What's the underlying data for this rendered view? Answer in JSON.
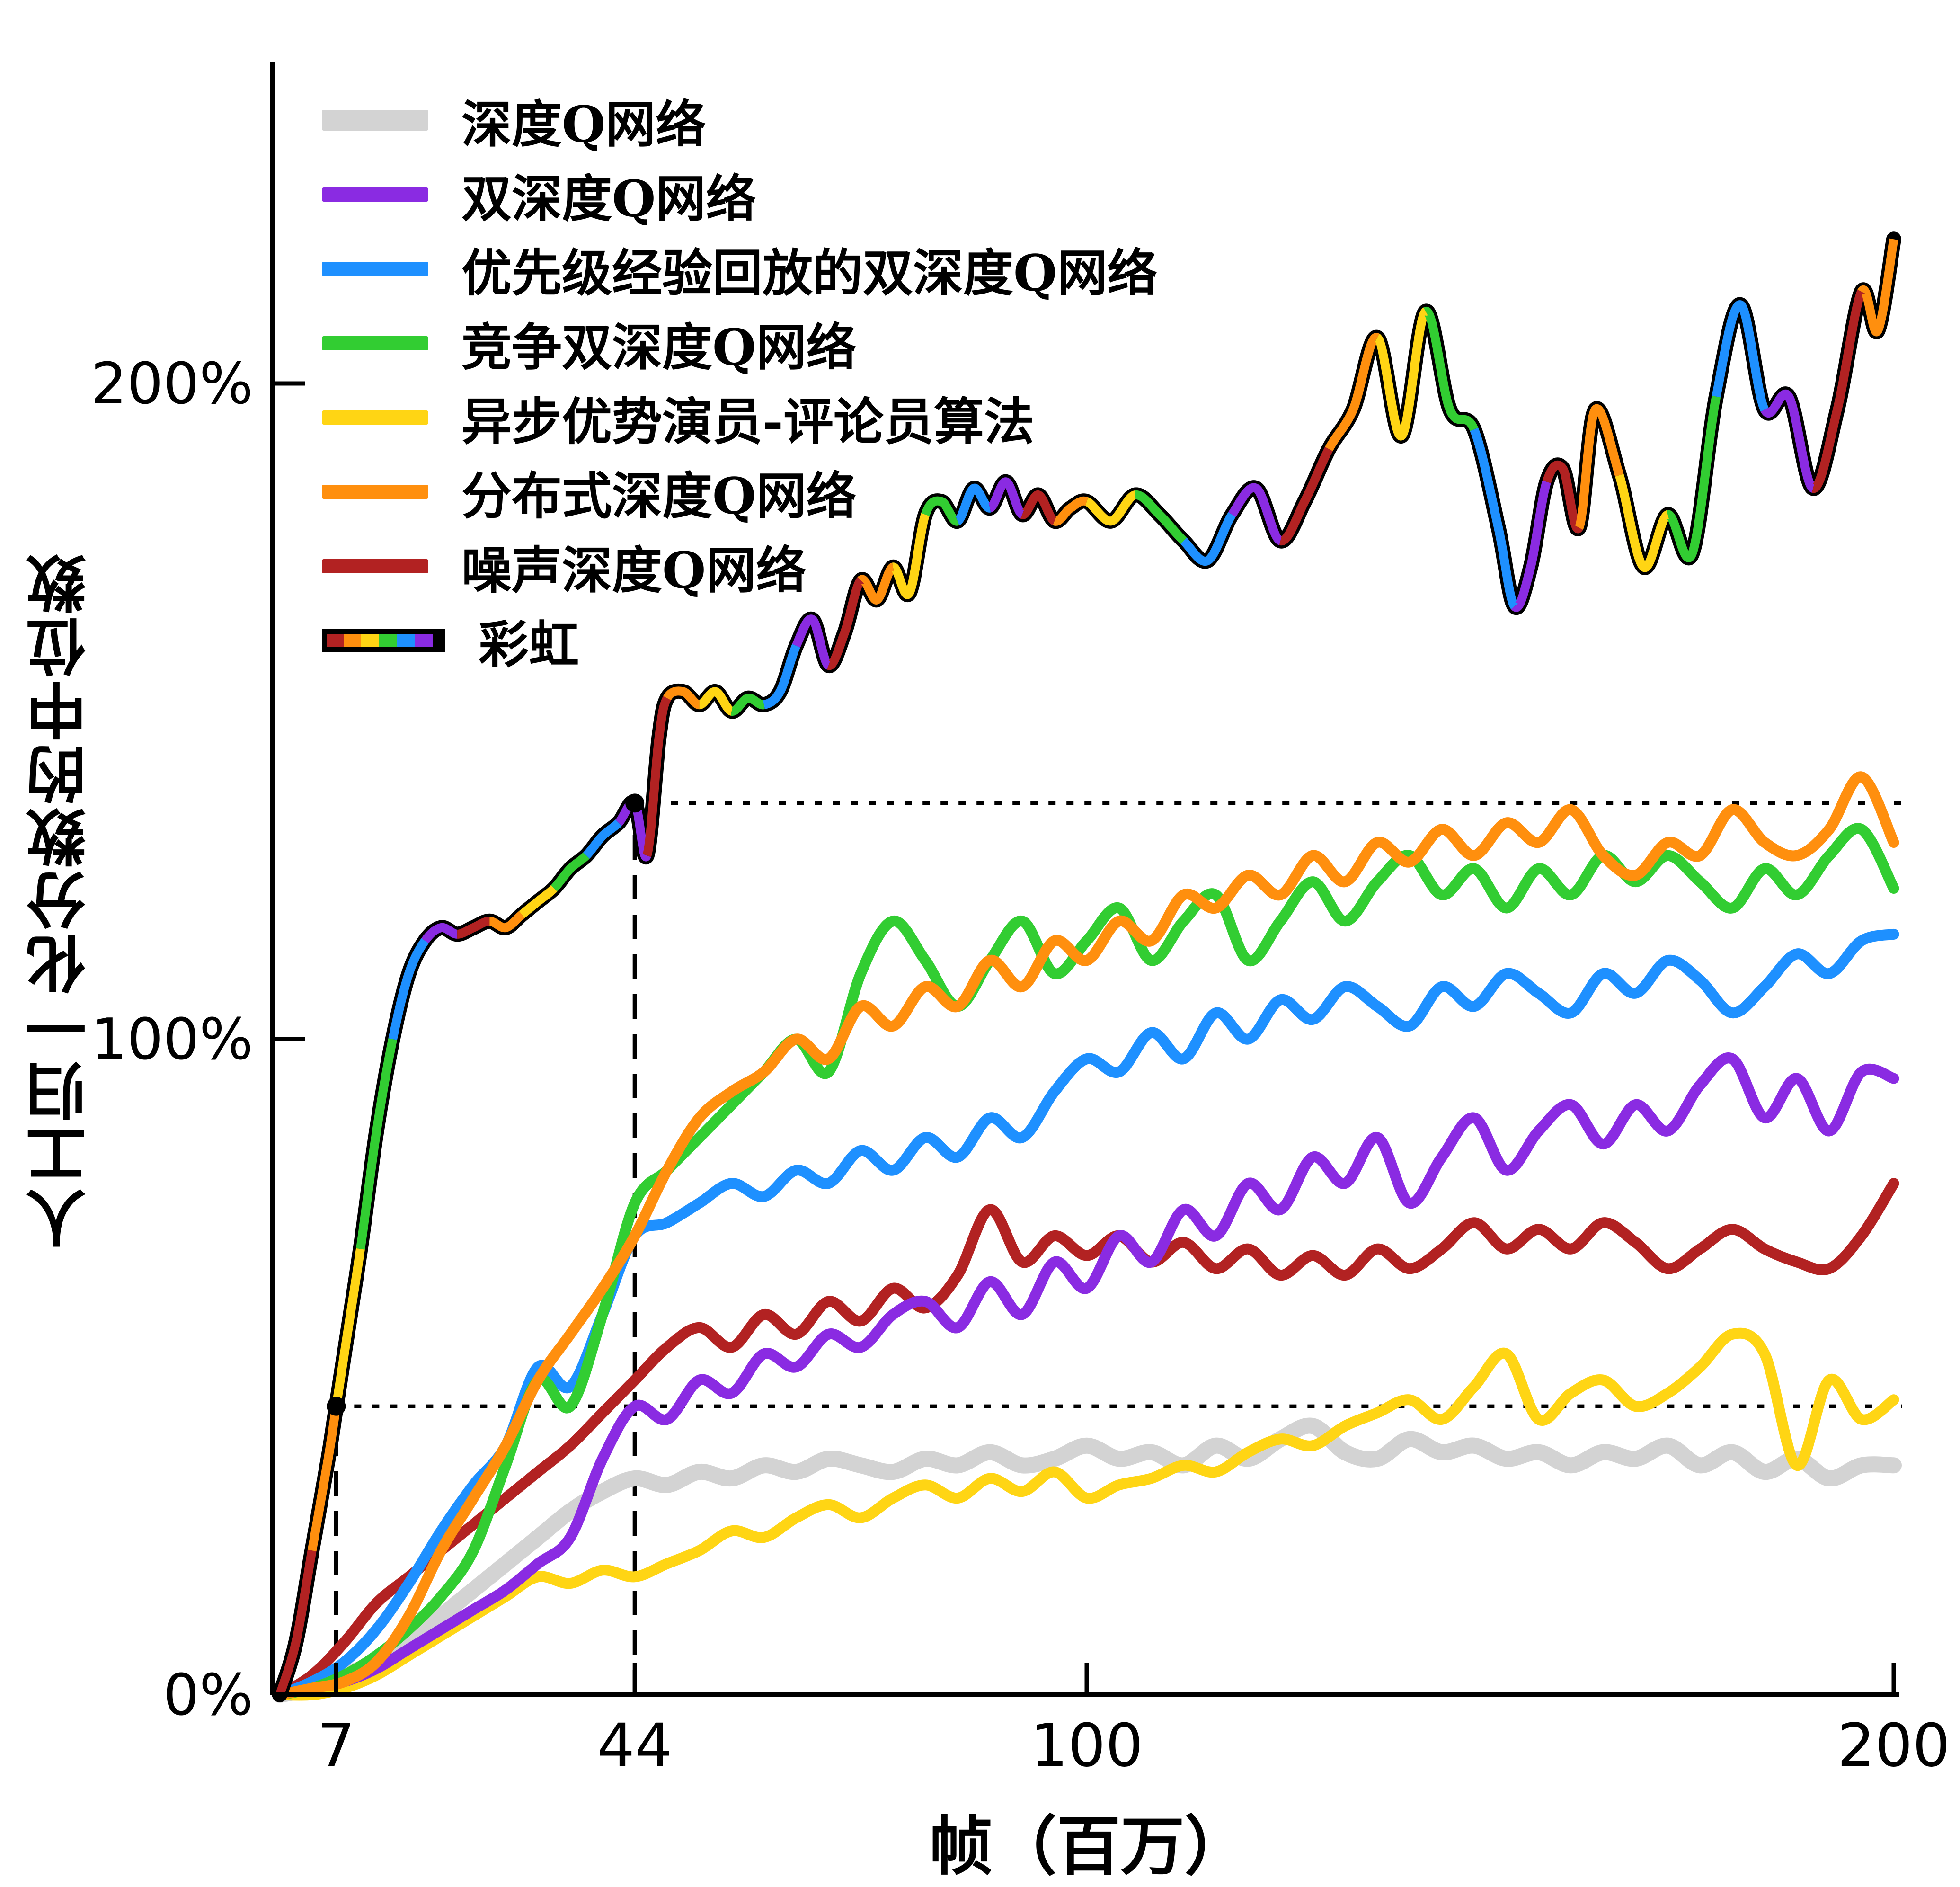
{
  "chart_data": {
    "type": "line",
    "title": "",
    "xlabel": "帧（百万）",
    "ylabel": "人工归一化分数的中位数",
    "xlim": [
      0,
      200
    ],
    "ylim": [
      0,
      250
    ],
    "grid": false,
    "legend_position": "top-left",
    "xticks": [
      {
        "value": 7,
        "label": "7"
      },
      {
        "value": 44,
        "label": "44"
      },
      {
        "value": 100,
        "label": "100"
      },
      {
        "value": 200,
        "label": "200"
      }
    ],
    "yticks": [
      {
        "value": 0,
        "label": "0%"
      },
      {
        "value": 100,
        "label": "100%"
      },
      {
        "value": 200,
        "label": "200%"
      }
    ],
    "x_grid": [
      0,
      4,
      8,
      12,
      16,
      20,
      24,
      28,
      32,
      36,
      40,
      44,
      48,
      52,
      56,
      60,
      64,
      68,
      72,
      76,
      80,
      84,
      88,
      92,
      96,
      100,
      104,
      108,
      112,
      116,
      120,
      124,
      128,
      132,
      136,
      140,
      144,
      148,
      152,
      156,
      160,
      164,
      168,
      172,
      176,
      180,
      184,
      188,
      192,
      196,
      200
    ],
    "series": [
      {
        "id": "dqn",
        "label": "深度Q网络",
        "color": "#d3d3d3",
        "width": 34,
        "y": [
          0,
          1,
          3,
          5,
          8,
          12,
          16,
          20,
          24,
          28,
          31,
          33,
          32,
          34,
          33,
          35,
          34,
          36,
          35,
          34,
          36,
          35,
          37,
          35,
          36,
          38,
          36,
          37,
          35,
          38,
          36,
          39,
          41,
          37,
          36,
          39,
          37,
          38,
          36,
          37,
          35,
          37,
          36,
          38,
          35,
          37,
          34,
          36,
          33,
          35,
          35
        ]
      },
      {
        "id": "double-dqn",
        "label": "双深度Q网络",
        "color": "#8a2be2",
        "width": 23,
        "y": [
          0,
          1,
          2,
          4,
          7,
          10,
          13,
          16,
          20,
          24,
          36,
          44,
          42,
          48,
          46,
          52,
          50,
          55,
          53,
          58,
          60,
          56,
          63,
          58,
          66,
          62,
          70,
          66,
          74,
          70,
          78,
          74,
          82,
          78,
          85,
          75,
          82,
          88,
          80,
          86,
          90,
          84,
          90,
          86,
          93,
          97,
          88,
          94,
          86,
          95,
          94
        ]
      },
      {
        "id": "prioritized-ddqn",
        "label": "优先级经验回放的双深度Q网络",
        "color": "#1e90ff",
        "width": 23,
        "y": [
          0,
          2,
          5,
          10,
          17,
          25,
          32,
          38,
          50,
          47,
          58,
          70,
          72,
          75,
          78,
          76,
          80,
          78,
          83,
          80,
          85,
          82,
          88,
          85,
          92,
          97,
          95,
          101,
          97,
          104,
          100,
          106,
          103,
          108,
          105,
          102,
          108,
          105,
          110,
          107,
          104,
          110,
          107,
          112,
          109,
          104,
          108,
          113,
          110,
          115,
          116
        ]
      },
      {
        "id": "dueling-ddqn",
        "label": "竞争双深度Q网络",
        "color": "#32cd32",
        "width": 23,
        "y": [
          0,
          1,
          3,
          6,
          10,
          15,
          22,
          35,
          48,
          44,
          58,
          75,
          80,
          85,
          90,
          95,
          100,
          95,
          110,
          118,
          112,
          105,
          112,
          118,
          110,
          115,
          120,
          112,
          118,
          122,
          112,
          118,
          124,
          118,
          124,
          128,
          122,
          126,
          120,
          126,
          122,
          128,
          124,
          128,
          124,
          120,
          126,
          122,
          128,
          132,
          123
        ]
      },
      {
        "id": "a3c",
        "label": "异步优势演员-评论员算法",
        "color": "#ffd514",
        "width": 23,
        "y": [
          0,
          0,
          1,
          3,
          6,
          9,
          12,
          15,
          18,
          17,
          19,
          18,
          20,
          22,
          25,
          24,
          27,
          29,
          27,
          30,
          32,
          30,
          33,
          31,
          34,
          30,
          32,
          33,
          35,
          34,
          37,
          39,
          38,
          41,
          43,
          45,
          42,
          47,
          52,
          42,
          46,
          48,
          44,
          46,
          50,
          55,
          52,
          35,
          48,
          42,
          45
        ]
      },
      {
        "id": "distributional-dqn",
        "label": "分布式深度Q网络",
        "color": "#ff8f0e",
        "width": 23,
        "y": [
          0,
          1,
          2,
          5,
          12,
          22,
          30,
          38,
          48,
          55,
          62,
          70,
          80,
          88,
          92,
          95,
          100,
          97,
          105,
          102,
          108,
          105,
          112,
          108,
          115,
          112,
          118,
          115,
          122,
          120,
          125,
          122,
          128,
          124,
          130,
          127,
          132,
          128,
          133,
          130,
          135,
          128,
          125,
          130,
          128,
          135,
          130,
          128,
          132,
          140,
          130
        ]
      },
      {
        "id": "noisy-dqn",
        "label": "噪声深度Q网络",
        "color": "#b22222",
        "width": 23,
        "y": [
          0,
          3,
          8,
          14,
          18,
          22,
          26,
          30,
          34,
          38,
          43,
          48,
          53,
          56,
          53,
          58,
          55,
          60,
          57,
          62,
          59,
          64,
          74,
          66,
          70,
          67,
          70,
          66,
          69,
          65,
          68,
          64,
          67,
          64,
          68,
          65,
          68,
          72,
          68,
          71,
          68,
          72,
          69,
          65,
          68,
          71,
          68,
          66,
          65,
          70,
          78
        ]
      }
    ],
    "rainbow_series": {
      "id": "rainbow",
      "label": "彩虹",
      "outline_color": "#000000",
      "outline_width": 32,
      "inner_width": 19,
      "palette": [
        "#b22222",
        "#ff8f0e",
        "#ffd514",
        "#32cd32",
        "#1e90ff",
        "#8a2be2"
      ],
      "x": [
        0,
        2,
        4,
        6,
        7,
        8,
        10,
        12,
        14,
        16,
        18,
        20,
        22,
        24,
        26,
        28,
        30,
        32,
        34,
        36,
        38,
        40,
        42,
        44,
        45.5,
        47,
        48,
        50,
        52,
        54,
        56,
        58,
        60,
        62,
        64,
        66,
        68,
        70,
        72,
        74,
        76,
        78,
        80,
        82,
        84,
        86,
        88,
        90,
        92,
        94,
        96,
        98,
        100,
        103,
        106,
        109,
        112,
        115,
        118,
        121,
        124,
        127,
        130,
        133,
        136,
        139,
        142,
        145,
        148,
        151,
        153,
        155,
        157,
        159,
        161,
        163,
        166,
        169,
        172,
        175,
        178,
        181,
        184,
        187,
        190,
        193,
        196,
        198,
        200
      ],
      "y": [
        0,
        8,
        22,
        36,
        44,
        52,
        68,
        86,
        100,
        110,
        115,
        117,
        116,
        117,
        118,
        117,
        119,
        121,
        123,
        126,
        128,
        131,
        133,
        136,
        128,
        146,
        152,
        153,
        151,
        153,
        150,
        152,
        151,
        153,
        160,
        164,
        157,
        162,
        170,
        167,
        172,
        168,
        180,
        182,
        179,
        184,
        181,
        185,
        180,
        183,
        179,
        181,
        182,
        179,
        183,
        180,
        176,
        173,
        180,
        184,
        176,
        182,
        190,
        196,
        207,
        192,
        211,
        196,
        193,
        178,
        166,
        172,
        185,
        187,
        178,
        196,
        186,
        172,
        180,
        174,
        198,
        212,
        196,
        198,
        184,
        196,
        214,
        208,
        222
      ]
    },
    "annotations": {
      "points": [
        {
          "x": 7,
          "y": 44
        },
        {
          "x": 44,
          "y": 136
        }
      ],
      "vlines": [
        {
          "x": 7,
          "y0": 0,
          "y1": 44,
          "style": "dashed"
        },
        {
          "x": 44,
          "y0": 0,
          "y1": 136,
          "style": "dashed"
        }
      ],
      "hlines": [
        {
          "y": 44,
          "x0": 7,
          "x1": 201,
          "style": "dotted"
        },
        {
          "y": 136,
          "x0": 44,
          "x1": 201,
          "style": "dotted"
        }
      ]
    },
    "axis_color": "#000000"
  },
  "legend": {
    "order": [
      "dqn",
      "double-dqn",
      "prioritized-ddqn",
      "dueling-ddqn",
      "a3c",
      "distributional-dqn",
      "noisy-dqn",
      "rainbow"
    ]
  }
}
